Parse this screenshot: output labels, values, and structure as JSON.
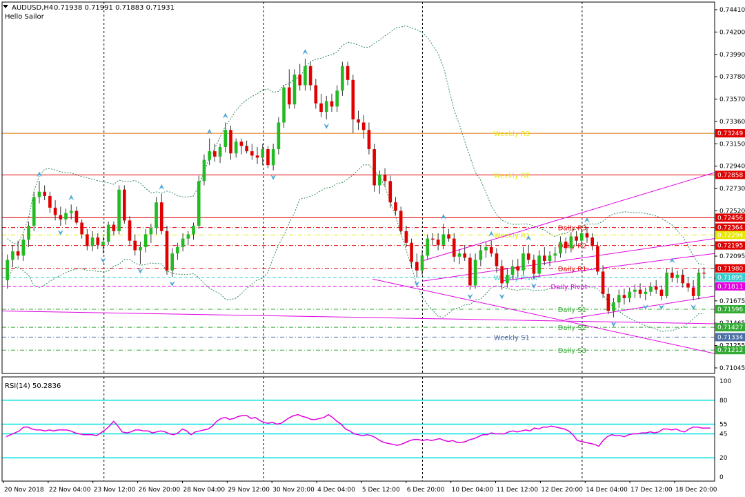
{
  "header": {
    "symbol": "AUDUSD,H4",
    "ohlc": "0.71938 0.71991 0.71883 0.71931",
    "indicator_name": "Hello Sailor"
  },
  "colors": {
    "bull": "#22bb22",
    "bear": "#e00000",
    "wick": "#333333",
    "bb": "#2e8b57",
    "fractal": "#4fa8d8",
    "magenta": "#e000e0",
    "orange": "#e07000",
    "red": "#e00000",
    "yellow": "#e8e800",
    "cyan": "#33cccc",
    "green": "#33aa33",
    "steel": "#4a6fa5",
    "rsi_line": "#e000e0",
    "rsi_level": "#00e0e0",
    "grid": "#000000"
  },
  "price_axis": {
    "ticks": [
      "0.74410",
      "0.74200",
      "0.73990",
      "0.73780",
      "0.73570",
      "0.73360",
      "0.73150",
      "0.72940",
      "0.72730",
      "0.72520",
      "0.72310",
      "0.72095",
      "0.71885",
      "0.71675",
      "0.71465",
      "0.71255",
      "0.71045"
    ],
    "range": [
      0.71045,
      0.7441
    ]
  },
  "level_lines": [
    {
      "label": "Weekly R3",
      "tag": "0.73249",
      "price": 0.73249,
      "color": "#e07000",
      "label_color": "#e8e800",
      "style": "solid",
      "label_x": 0.69,
      "tag_bg": "#e00000"
    },
    {
      "label": "Weekly R2",
      "tag": "0.72858",
      "price": 0.72858,
      "color": "#e00000",
      "label_color": "#e8e800",
      "style": "solid",
      "label_x": 0.69,
      "tag_bg": "#e00000"
    },
    {
      "label": "",
      "tag": "0.72456",
      "price": 0.72456,
      "color": "#e00000",
      "label_color": "#e00000",
      "style": "solid",
      "label_x": 0,
      "tag_bg": "#e00000"
    },
    {
      "label": "Daily R3",
      "tag": "0.72364",
      "price": 0.72364,
      "color": "#e00000",
      "label_color": "#e00000",
      "style": "dashdot",
      "label_x": 0.78,
      "tag_bg": "#e00000"
    },
    {
      "label": "Weekly R1",
      "tag": "0.72294",
      "price": 0.72294,
      "color": "#e8e800",
      "label_color": "#e8e800",
      "style": "dashdot",
      "label_x": 0.69,
      "tag_bg": "#e8e800"
    },
    {
      "label": "Daily R2",
      "tag": "0.72195",
      "price": 0.72195,
      "color": "#e00000",
      "label_color": "#e00000",
      "style": "dashdot",
      "label_x": 0.78,
      "tag_bg": "#e00000"
    },
    {
      "label": "Daily R1",
      "tag": "0.71980",
      "price": 0.7198,
      "color": "#e00000",
      "label_color": "#e00000",
      "style": "dashdot",
      "label_x": 0.78,
      "tag_bg": "#e00000"
    },
    {
      "label": "Weekly Pivot",
      "tag": "0.71895",
      "price": 0.71895,
      "color": "#33cccc",
      "label_color": "#33cccc",
      "style": "dashed",
      "label_x": 0.69,
      "tag_bg": "#33cccc"
    },
    {
      "label": "Daily Pivot",
      "tag": "0.71811",
      "price": 0.71811,
      "color": "#e000e0",
      "label_color": "#e000e0",
      "style": "dashed",
      "label_x": 0.77,
      "tag_bg": "#e000e0"
    },
    {
      "label": "Daily S1",
      "tag": "0.71596",
      "price": 0.71596,
      "color": "#33aa33",
      "label_color": "#33aa33",
      "style": "dashdot",
      "label_x": 0.78,
      "tag_bg": "#33aa33"
    },
    {
      "label": "Daily S2",
      "tag": "0.71427",
      "price": 0.71427,
      "color": "#33aa33",
      "label_color": "#33aa33",
      "style": "dashdot",
      "label_x": 0.78,
      "tag_bg": "#33aa33"
    },
    {
      "label": "Weekly S1",
      "tag": "0.71334",
      "price": 0.71334,
      "color": "#4a6fa5",
      "label_color": "#4a6fa5",
      "style": "dashdot",
      "label_x": 0.69,
      "tag_bg": "#4a6fa5"
    },
    {
      "label": "Daily S3",
      "tag": "0.71212",
      "price": 0.71212,
      "color": "#33aa33",
      "label_color": "#33aa33",
      "style": "dashdot",
      "label_x": 0.78,
      "tag_bg": "#33aa33"
    }
  ],
  "trendlines": [
    {
      "from": [
        0.59,
        0.7205
      ],
      "to": [
        1.0,
        0.7288
      ]
    },
    {
      "from": [
        0.59,
        0.7186
      ],
      "to": [
        1.0,
        0.7226
      ]
    },
    {
      "from": [
        0.7,
        0.7186
      ],
      "to": [
        1.0,
        0.7212
      ]
    },
    {
      "from": [
        0.79,
        0.715
      ],
      "to": [
        1.0,
        0.7172
      ]
    },
    {
      "from": [
        0.52,
        0.7188
      ],
      "to": [
        1.0,
        0.7118
      ]
    },
    {
      "from": [
        0.0,
        0.7158
      ],
      "to": [
        1.0,
        0.7146
      ]
    }
  ],
  "x_axis": {
    "labels": [
      "20 Nov 2018",
      "22 Nov 04:00",
      "23 Nov 12:00",
      "26 Nov 20:00",
      "28 Nov 04:00",
      "29 Nov 12:00",
      "30 Nov 20:00",
      "4 Dec 04:00",
      "5 Dec 12:00",
      "6 Dec 20:00",
      "10 Dec 04:00",
      "11 Dec 12:00",
      "12 Dec 20:00",
      "14 Dec 04:00",
      "17 Dec 12:00",
      "18 Dec 20:00"
    ],
    "session_breaks": [
      0.143,
      0.367,
      0.59,
      0.814
    ]
  },
  "rsi": {
    "title": "RSI(14) 50.2836",
    "axis_labels": [
      "100",
      "80",
      "55",
      "45",
      "20",
      "0"
    ],
    "levels": [
      80,
      55,
      45,
      20
    ],
    "values": [
      42,
      44,
      46,
      48,
      52,
      52,
      50,
      49,
      49,
      48,
      49,
      48,
      49,
      49,
      49,
      48,
      46,
      45,
      44,
      44,
      44,
      43,
      46,
      49,
      53,
      58,
      53,
      47,
      46,
      47,
      49,
      49,
      48,
      48,
      46,
      47,
      48,
      47,
      45,
      44,
      46,
      50,
      48,
      44,
      47,
      48,
      49,
      50,
      53,
      58,
      61,
      62,
      60,
      61,
      63,
      64,
      64,
      61,
      62,
      59,
      57,
      56,
      57,
      55,
      56,
      59,
      62,
      64,
      65,
      63,
      62,
      60,
      60,
      61,
      62,
      65,
      62,
      58,
      55,
      50,
      48,
      45,
      44,
      43,
      44,
      43,
      41,
      38,
      36,
      35,
      34,
      33,
      34,
      36,
      38,
      39,
      39,
      38,
      39,
      38,
      39,
      40,
      38,
      37,
      38,
      36,
      36,
      37,
      39,
      40,
      42,
      44,
      44,
      46,
      45,
      45,
      45,
      47,
      48,
      47,
      48,
      49,
      48,
      51,
      50,
      52,
      52,
      53,
      52,
      51,
      50,
      48,
      44,
      38,
      37,
      36,
      35,
      34,
      32,
      38,
      42,
      44,
      43,
      43,
      42,
      44,
      45,
      45,
      46,
      46,
      47,
      46,
      47,
      50,
      50,
      49,
      50,
      48,
      47,
      50,
      52,
      52,
      51,
      51,
      51
    ]
  },
  "candles": [
    [
      0.7187,
      0.7211,
      0.7179,
      0.7206
    ],
    [
      0.7206,
      0.722,
      0.7199,
      0.7214
    ],
    [
      0.7214,
      0.7224,
      0.7206,
      0.721
    ],
    [
      0.721,
      0.723,
      0.7205,
      0.7225
    ],
    [
      0.7225,
      0.7242,
      0.7218,
      0.7238
    ],
    [
      0.7238,
      0.727,
      0.7233,
      0.7265
    ],
    [
      0.7265,
      0.728,
      0.7259,
      0.727
    ],
    [
      0.727,
      0.7276,
      0.7262,
      0.7266
    ],
    [
      0.7266,
      0.727,
      0.725,
      0.7255
    ],
    [
      0.7255,
      0.7262,
      0.7243,
      0.7248
    ],
    [
      0.7248,
      0.7256,
      0.7238,
      0.7244
    ],
    [
      0.7244,
      0.7254,
      0.7239,
      0.725
    ],
    [
      0.725,
      0.7258,
      0.7244,
      0.7252
    ],
    [
      0.7252,
      0.7256,
      0.7239,
      0.7241
    ],
    [
      0.7241,
      0.7244,
      0.7226,
      0.723
    ],
    [
      0.723,
      0.7235,
      0.7215,
      0.7219
    ],
    [
      0.7219,
      0.7233,
      0.7214,
      0.7227
    ],
    [
      0.7227,
      0.7231,
      0.7216,
      0.722
    ],
    [
      0.722,
      0.7228,
      0.7212,
      0.7223
    ],
    [
      0.7223,
      0.7242,
      0.722,
      0.7239
    ],
    [
      0.7239,
      0.7242,
      0.7229,
      0.7233
    ],
    [
      0.7233,
      0.7276,
      0.723,
      0.7272
    ],
    [
      0.7272,
      0.7276,
      0.724,
      0.7243
    ],
    [
      0.7243,
      0.7247,
      0.722,
      0.7224
    ],
    [
      0.7224,
      0.723,
      0.721,
      0.7215
    ],
    [
      0.7215,
      0.7223,
      0.7202,
      0.7218
    ],
    [
      0.7218,
      0.7235,
      0.7213,
      0.723
    ],
    [
      0.723,
      0.724,
      0.7222,
      0.7236
    ],
    [
      0.7236,
      0.7265,
      0.723,
      0.726
    ],
    [
      0.726,
      0.7268,
      0.723,
      0.7233
    ],
    [
      0.7233,
      0.7238,
      0.7192,
      0.7196
    ],
    [
      0.7196,
      0.7217,
      0.719,
      0.7212
    ],
    [
      0.7212,
      0.7222,
      0.7206,
      0.7218
    ],
    [
      0.7218,
      0.7231,
      0.7214,
      0.7226
    ],
    [
      0.7226,
      0.7233,
      0.722,
      0.723
    ],
    [
      0.723,
      0.7241,
      0.7225,
      0.7238
    ],
    [
      0.7238,
      0.7285,
      0.7235,
      0.728
    ],
    [
      0.728,
      0.7305,
      0.7276,
      0.73
    ],
    [
      0.73,
      0.732,
      0.7295,
      0.7308
    ],
    [
      0.7308,
      0.7315,
      0.7298,
      0.7303
    ],
    [
      0.7303,
      0.7315,
      0.7297,
      0.7312
    ],
    [
      0.7312,
      0.7335,
      0.7307,
      0.7328
    ],
    [
      0.7328,
      0.7332,
      0.73,
      0.7306
    ],
    [
      0.7306,
      0.732,
      0.7302,
      0.7317
    ],
    [
      0.7317,
      0.732,
      0.7305,
      0.7313
    ],
    [
      0.7313,
      0.7318,
      0.7306,
      0.7308
    ],
    [
      0.7308,
      0.7315,
      0.73,
      0.7304
    ],
    [
      0.7304,
      0.7312,
      0.7296,
      0.7302
    ],
    [
      0.7302,
      0.7315,
      0.7295,
      0.731
    ],
    [
      0.731,
      0.7313,
      0.7292,
      0.7295
    ],
    [
      0.7295,
      0.7315,
      0.729,
      0.731
    ],
    [
      0.731,
      0.734,
      0.7305,
      0.7335
    ],
    [
      0.7335,
      0.737,
      0.733,
      0.7368
    ],
    [
      0.7368,
      0.7385,
      0.7348,
      0.7352
    ],
    [
      0.7352,
      0.7385,
      0.7348,
      0.738
    ],
    [
      0.738,
      0.739,
      0.7365,
      0.737
    ],
    [
      0.737,
      0.7395,
      0.7365,
      0.7388
    ],
    [
      0.7388,
      0.7392,
      0.7365,
      0.737
    ],
    [
      0.737,
      0.7376,
      0.7348,
      0.7353
    ],
    [
      0.7353,
      0.7362,
      0.734,
      0.7345
    ],
    [
      0.7345,
      0.736,
      0.7338,
      0.7355
    ],
    [
      0.7355,
      0.7362,
      0.7345,
      0.735
    ],
    [
      0.735,
      0.737,
      0.7345,
      0.7365
    ],
    [
      0.7365,
      0.7392,
      0.736,
      0.7388
    ],
    [
      0.7388,
      0.7392,
      0.737,
      0.7375
    ],
    [
      0.7375,
      0.738,
      0.7325,
      0.7338
    ],
    [
      0.7338,
      0.7346,
      0.7328,
      0.7335
    ],
    [
      0.7335,
      0.7342,
      0.732,
      0.7328
    ],
    [
      0.7328,
      0.7335,
      0.7305,
      0.731
    ],
    [
      0.731,
      0.7315,
      0.727,
      0.7276
    ],
    [
      0.7276,
      0.729,
      0.7268,
      0.7286
    ],
    [
      0.7286,
      0.7292,
      0.7275,
      0.728
    ],
    [
      0.728,
      0.7285,
      0.7255,
      0.726
    ],
    [
      0.726,
      0.7265,
      0.7248,
      0.7252
    ],
    [
      0.7252,
      0.7256,
      0.723,
      0.7233
    ],
    [
      0.7233,
      0.7238,
      0.7218,
      0.7222
    ],
    [
      0.7222,
      0.7226,
      0.7198,
      0.7204
    ],
    [
      0.7204,
      0.7212,
      0.719,
      0.7196
    ],
    [
      0.7196,
      0.7215,
      0.7192,
      0.721
    ],
    [
      0.721,
      0.723,
      0.7206,
      0.7226
    ],
    [
      0.7226,
      0.7231,
      0.722,
      0.7225
    ],
    [
      0.7225,
      0.7231,
      0.7215,
      0.722
    ],
    [
      0.722,
      0.724,
      0.7216,
      0.723
    ],
    [
      0.723,
      0.7235,
      0.7223,
      0.7226
    ],
    [
      0.7226,
      0.7231,
      0.7204,
      0.7209
    ],
    [
      0.7209,
      0.7216,
      0.7202,
      0.7212
    ],
    [
      0.7212,
      0.722,
      0.7205,
      0.7208
    ],
    [
      0.7208,
      0.7212,
      0.7178,
      0.7182
    ],
    [
      0.7182,
      0.7212,
      0.7179,
      0.7206
    ],
    [
      0.7206,
      0.722,
      0.72,
      0.7215
    ],
    [
      0.7215,
      0.7223,
      0.7208,
      0.7218
    ],
    [
      0.7218,
      0.7224,
      0.7209,
      0.7212
    ],
    [
      0.7212,
      0.7217,
      0.7194,
      0.72
    ],
    [
      0.72,
      0.7206,
      0.7178,
      0.7184
    ],
    [
      0.7184,
      0.7198,
      0.718,
      0.7192
    ],
    [
      0.7192,
      0.7206,
      0.7188,
      0.72
    ],
    [
      0.72,
      0.7207,
      0.719,
      0.7196
    ],
    [
      0.7196,
      0.7218,
      0.7192,
      0.7212
    ],
    [
      0.7212,
      0.722,
      0.7202,
      0.7206
    ],
    [
      0.7206,
      0.7211,
      0.7188,
      0.7193
    ],
    [
      0.7193,
      0.7215,
      0.719,
      0.721
    ],
    [
      0.721,
      0.7218,
      0.7201,
      0.7205
    ],
    [
      0.7205,
      0.7214,
      0.72,
      0.721
    ],
    [
      0.721,
      0.7218,
      0.7204,
      0.7212
    ],
    [
      0.7212,
      0.7228,
      0.7208,
      0.7223
    ],
    [
      0.7223,
      0.7227,
      0.7212,
      0.7217
    ],
    [
      0.7217,
      0.7232,
      0.7213,
      0.7228
    ],
    [
      0.7228,
      0.7233,
      0.7219,
      0.7224
    ],
    [
      0.7224,
      0.7235,
      0.722,
      0.7231
    ],
    [
      0.7231,
      0.7237,
      0.7222,
      0.7227
    ],
    [
      0.7227,
      0.7231,
      0.7215,
      0.7219
    ],
    [
      0.7219,
      0.7223,
      0.7192,
      0.7195
    ],
    [
      0.7195,
      0.7201,
      0.717,
      0.7174
    ],
    [
      0.7174,
      0.718,
      0.7155,
      0.7158
    ],
    [
      0.7158,
      0.717,
      0.7152,
      0.7166
    ],
    [
      0.7166,
      0.7178,
      0.7161,
      0.7173
    ],
    [
      0.7173,
      0.7179,
      0.7164,
      0.717
    ],
    [
      0.717,
      0.718,
      0.7166,
      0.7176
    ],
    [
      0.7176,
      0.7183,
      0.717,
      0.7178
    ],
    [
      0.7178,
      0.7184,
      0.717,
      0.7174
    ],
    [
      0.7174,
      0.718,
      0.7168,
      0.7176
    ],
    [
      0.7176,
      0.7185,
      0.7172,
      0.7181
    ],
    [
      0.7181,
      0.7187,
      0.7174,
      0.7178
    ],
    [
      0.7178,
      0.7182,
      0.7168,
      0.7172
    ],
    [
      0.7172,
      0.7198,
      0.717,
      0.7194
    ],
    [
      0.7194,
      0.7199,
      0.7185,
      0.7189
    ],
    [
      0.7189,
      0.7196,
      0.7184,
      0.7192
    ],
    [
      0.7192,
      0.7197,
      0.718,
      0.7184
    ],
    [
      0.7184,
      0.719,
      0.7176,
      0.718
    ],
    [
      0.718,
      0.7187,
      0.7168,
      0.7172
    ],
    [
      0.7172,
      0.7198,
      0.7169,
      0.7194
    ],
    [
      0.7194,
      0.71991,
      0.71883,
      0.71931
    ]
  ]
}
